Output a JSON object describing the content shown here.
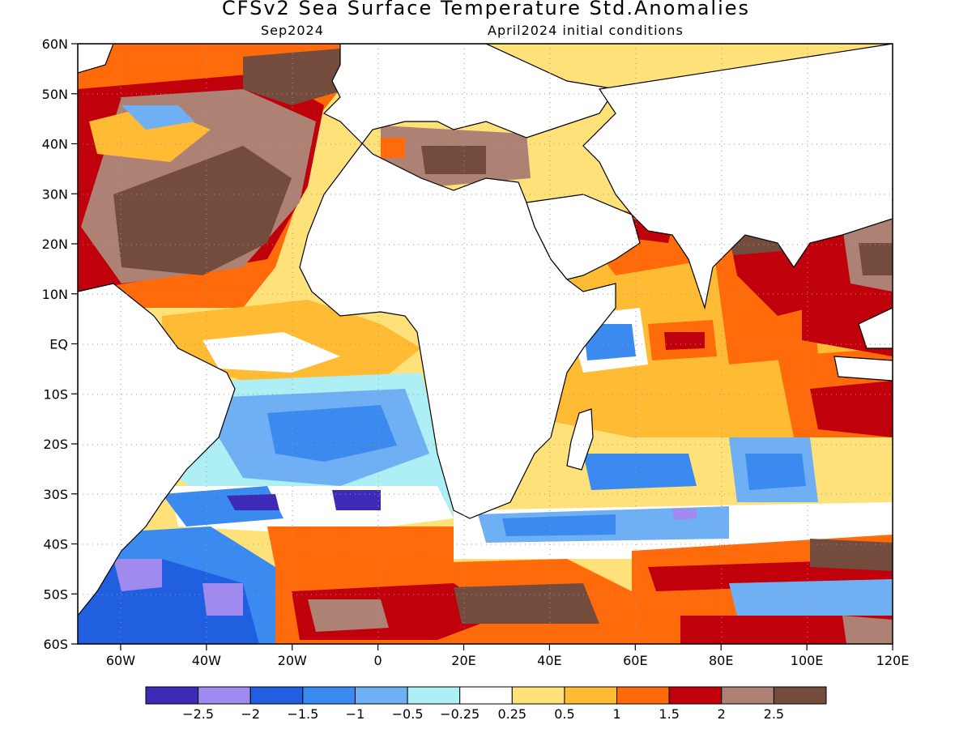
{
  "title": "CFSv2 Sea Surface Temperature Std.Anomalies",
  "subtitle_left": "Sep2024",
  "subtitle_right": "April2024 initial conditions",
  "map": {
    "lon_range": [
      -70,
      120
    ],
    "lat_range": [
      -60,
      60
    ],
    "lat_labels": [
      "60N",
      "50N",
      "40N",
      "30N",
      "20N",
      "10N",
      "EQ",
      "10S",
      "20S",
      "30S",
      "40S",
      "50S",
      "60S"
    ],
    "lon_labels": [
      "60W",
      "40W",
      "20W",
      "0",
      "20E",
      "40E",
      "60E",
      "80E",
      "100E",
      "120E"
    ],
    "gridlines": "dotted"
  },
  "colorbar": {
    "colors": [
      "#3d2bb7",
      "#a08af0",
      "#1f5fe0",
      "#3a8af0",
      "#6fb0f5",
      "#aeeff5",
      "#ffffff",
      "#ffe17a",
      "#ffbb33",
      "#ff6a0a",
      "#c0000a",
      "#ad8275",
      "#744c3e"
    ],
    "labels": [
      "−2.5",
      "−2",
      "−1.5",
      "−1",
      "−0.5",
      "−0.25",
      "0.25",
      "0.5",
      "1",
      "1.5",
      "2",
      "2.5"
    ]
  }
}
